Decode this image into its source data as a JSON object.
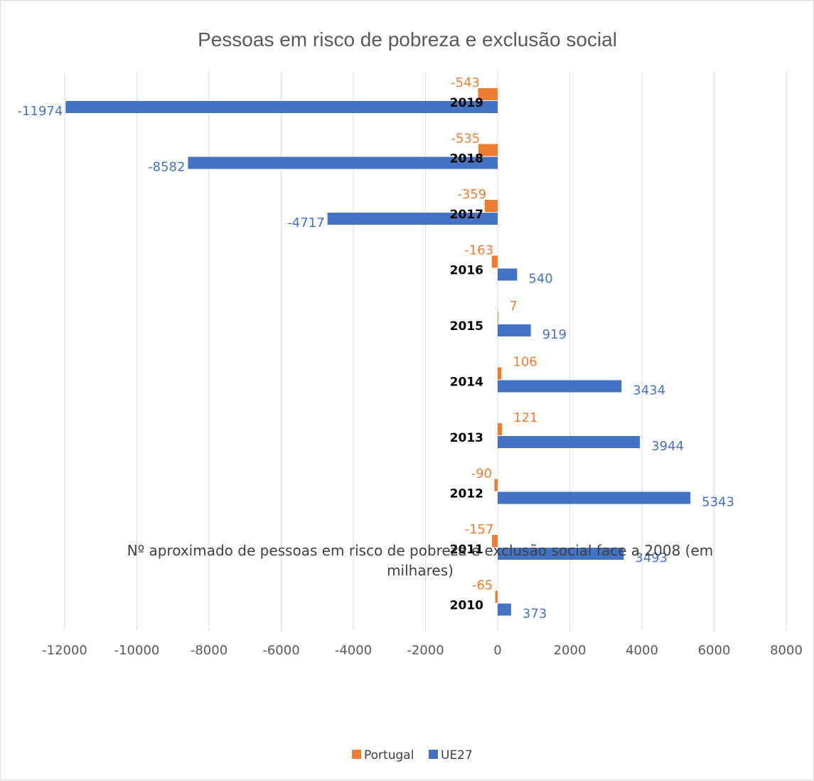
{
  "chart_data": {
    "type": "bar",
    "orientation": "horizontal",
    "title": "Pessoas em risco de pobreza e exclusão social",
    "xlabel_lines": [
      "Nº aproximado de pessoas em risco de pobreza e exclusão social face a 2008 (em",
      "milhares)"
    ],
    "xlim": [
      -12000,
      8000
    ],
    "xticks": [
      "-12000",
      "-10000",
      "-8000",
      "-6000",
      "-4000",
      "-2000",
      "0",
      "2000",
      "4000",
      "6000",
      "8000"
    ],
    "grid": true,
    "legend_position": "bottom",
    "categories": [
      "2019",
      "2018",
      "2017",
      "2016",
      "2015",
      "2014",
      "2013",
      "2012",
      "2011",
      "2010"
    ],
    "series": [
      {
        "name": "Portugal",
        "color": "#ed7d31",
        "values": [
          -543,
          -535,
          -359,
          -163,
          7,
          106,
          121,
          -90,
          -157,
          -65
        ]
      },
      {
        "name": "UE27",
        "color": "#4472c4",
        "values": [
          -11974,
          -8582,
          -4717,
          540,
          919,
          3434,
          3944,
          5343,
          3493,
          373
        ]
      }
    ]
  }
}
